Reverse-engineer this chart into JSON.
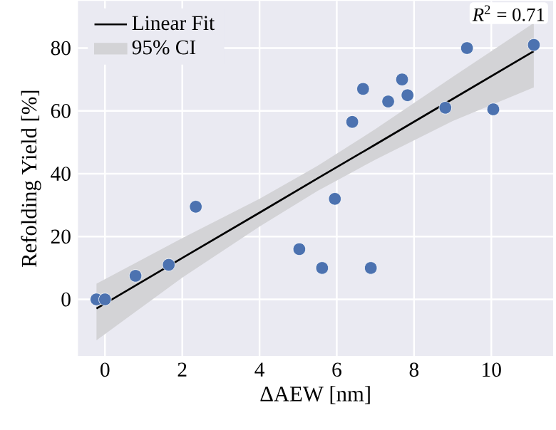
{
  "chart_data": {
    "type": "scatter",
    "xlabel": "ΔAEW [nm]",
    "ylabel": "Refolding Yield [%]",
    "xlim": [
      -0.7,
      11.6
    ],
    "ylim": [
      -18,
      95
    ],
    "xticks": [
      0,
      2,
      4,
      6,
      8,
      10
    ],
    "yticks": [
      0,
      20,
      40,
      60,
      80
    ],
    "grid": true,
    "legend": "top left",
    "annotations": [
      "*R*$^{2}$ = 0.71",
      "95% CI"
    ],
    "series": [
      {
        "type": "line",
        "name": "Linear Fit",
        "color": "#000000",
        "x": [
          -0.22,
          2,
          4,
          5.5,
          7,
          9,
          11.1
        ],
        "values": [
          -2.9,
          13.2,
          27.6,
          38.5,
          49.3,
          63.8,
          79
        ],
        "lower": [
          -13,
          6.9,
          23.2,
          34.5,
          44.5,
          56.8,
          67.5
        ],
        "upper": [
          5,
          19.5,
          32.0,
          42.5,
          54.2,
          70.8,
          88
        ]
      },
      {
        "color": "#4c72b0",
        "x": [
          11.1,
          9.37,
          7.69,
          6.68,
          7.33,
          7.83,
          6.4,
          8.81,
          10.05,
          5.95,
          2.35,
          5.03,
          5.62,
          6.88,
          1.65,
          0.79,
          -0.22,
          0
        ],
        "values": [
          81,
          80,
          70,
          67,
          63,
          65,
          56.5,
          61,
          60.5,
          32,
          29.5,
          16,
          10,
          10,
          11,
          7.5,
          0,
          0
        ]
      }
    ]
  }
}
